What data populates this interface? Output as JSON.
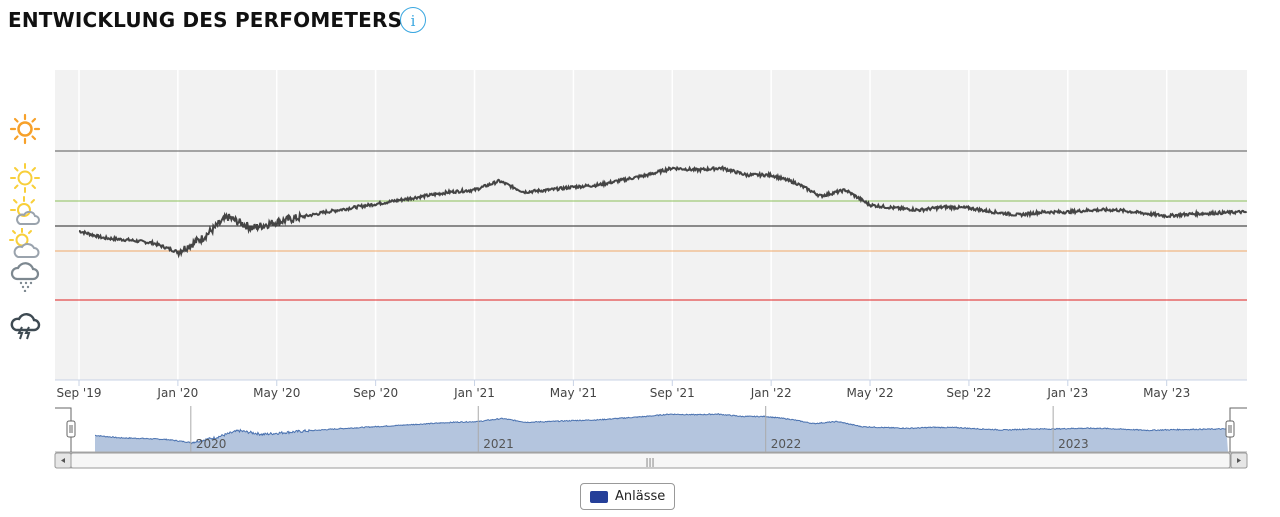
{
  "header": {
    "title": "ENTWICKLUNG DES PERFOMETERS",
    "info_icon": "info-icon"
  },
  "weather_icons": [
    "sun-strong-icon",
    "sun-icon",
    "sun-cloud-icon",
    "partly-cloudy-icon",
    "rain-cloud-icon",
    "thunderstorm-icon"
  ],
  "colors": {
    "line": "#444444",
    "navigator_fill": "#b4c5de",
    "navigator_line": "#4a72b0",
    "threshold_top": "#555555",
    "threshold_green": "#8cc05a",
    "threshold_mid": "#222222",
    "threshold_orange": "#f0a868",
    "threshold_red": "#e02020",
    "legend_swatch": "#253f99"
  },
  "legend": {
    "label": "Anlässe"
  },
  "chart_data": {
    "type": "line",
    "title": "",
    "xlabel": "",
    "ylabel": "",
    "x_ticks": [
      "Sep '19",
      "Jan '20",
      "May '20",
      "Sep '20",
      "Jan '21",
      "May '21",
      "Sep '21",
      "Jan '22",
      "May '22",
      "Sep '22",
      "Jan '23",
      "May '23"
    ],
    "navigator_ticks": [
      "2020",
      "2021",
      "2022",
      "2023"
    ],
    "y_axis_labels": false,
    "ylim": [
      0,
      310
    ],
    "thresholds": [
      229,
      179,
      154,
      129,
      80
    ],
    "grid": "vertical",
    "series": [
      {
        "points": [
          [
            "2019-09",
            149
          ],
          [
            "2019-10",
            142
          ],
          [
            "2019-11",
            140
          ],
          [
            "2019-12",
            137
          ],
          [
            "2020-01",
            128
          ],
          [
            "2020-02",
            142
          ],
          [
            "2020-03",
            163
          ],
          [
            "2020-04",
            152
          ],
          [
            "2020-05",
            158
          ],
          [
            "2020-06",
            163
          ],
          [
            "2020-07",
            168
          ],
          [
            "2020-08",
            172
          ],
          [
            "2020-09",
            176
          ],
          [
            "2020-10",
            180
          ],
          [
            "2020-11",
            184
          ],
          [
            "2020-12",
            188
          ],
          [
            "2021-01",
            190
          ],
          [
            "2021-02",
            199
          ],
          [
            "2021-03",
            188
          ],
          [
            "2021-04",
            190
          ],
          [
            "2021-05",
            193
          ],
          [
            "2021-06",
            195
          ],
          [
            "2021-07",
            200
          ],
          [
            "2021-08",
            205
          ],
          [
            "2021-09",
            212
          ],
          [
            "2021-10",
            210
          ],
          [
            "2021-11",
            212
          ],
          [
            "2021-12",
            205
          ],
          [
            "2022-01",
            205
          ],
          [
            "2022-02",
            197
          ],
          [
            "2022-03",
            184
          ],
          [
            "2022-04",
            190
          ],
          [
            "2022-05",
            175
          ],
          [
            "2022-06",
            172
          ],
          [
            "2022-07",
            170
          ],
          [
            "2022-08",
            173
          ],
          [
            "2022-09",
            172
          ],
          [
            "2022-10",
            168
          ],
          [
            "2022-11",
            165
          ],
          [
            "2022-12",
            168
          ],
          [
            "2023-01",
            168
          ],
          [
            "2023-02",
            170
          ],
          [
            "2023-03",
            170
          ],
          [
            "2023-04",
            167
          ],
          [
            "2023-05",
            164
          ],
          [
            "2023-06",
            166
          ],
          [
            "2023-07",
            167
          ],
          [
            "2023-08",
            168
          ],
          [
            "2023-09",
            167
          ]
        ]
      }
    ]
  }
}
